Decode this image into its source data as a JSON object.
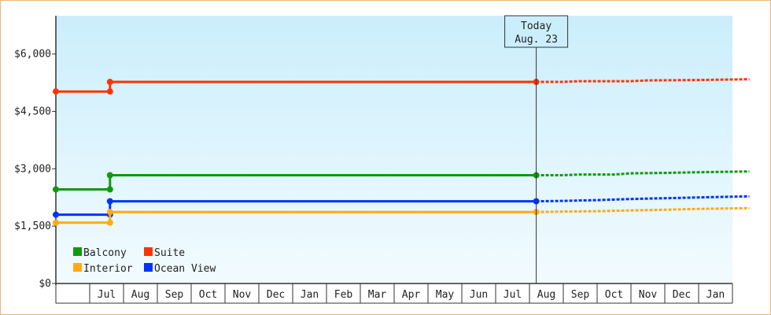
{
  "chart_data": {
    "type": "line",
    "title": "",
    "xlabel": "",
    "ylabel": "",
    "ylim": [
      0,
      7000
    ],
    "yticks": [
      {
        "value": 0,
        "label": "$0"
      },
      {
        "value": 1500,
        "label": "$1,500"
      },
      {
        "value": 3000,
        "label": "$3,000"
      },
      {
        "value": 4500,
        "label": "$4,500"
      },
      {
        "value": 6000,
        "label": "$6,000"
      }
    ],
    "months": [
      "",
      "Jul",
      "Aug",
      "Sep",
      "Oct",
      "Nov",
      "Dec",
      "Jan",
      "Feb",
      "Mar",
      "Apr",
      "May",
      "Jun",
      "Jul",
      "Aug",
      "Sep",
      "Oct",
      "Nov",
      "Dec",
      "Jan",
      ""
    ],
    "grid": false,
    "legend_position": "bottom-left",
    "today_marker": {
      "line1": "Today",
      "line2": "Aug. 23",
      "x": 14.2
    },
    "series": [
      {
        "name": "Suite",
        "color": "#ff3300",
        "history": [
          [
            0,
            5020
          ],
          [
            1.6,
            5020
          ],
          [
            1.6,
            5270
          ],
          [
            14.2,
            5270
          ]
        ],
        "forecast": [
          [
            14.2,
            5270
          ],
          [
            15.0,
            5270
          ],
          [
            15.5,
            5290
          ],
          [
            17.0,
            5290
          ],
          [
            17.5,
            5310
          ],
          [
            19.0,
            5320
          ],
          [
            20.5,
            5340
          ]
        ]
      },
      {
        "name": "Balcony",
        "color": "#119911",
        "history": [
          [
            0,
            2460
          ],
          [
            1.6,
            2460
          ],
          [
            1.6,
            2830
          ],
          [
            14.2,
            2830
          ]
        ],
        "forecast": [
          [
            14.2,
            2830
          ],
          [
            15.0,
            2830
          ],
          [
            15.5,
            2850
          ],
          [
            16.5,
            2850
          ],
          [
            17.0,
            2880
          ],
          [
            18.0,
            2890
          ],
          [
            19.0,
            2910
          ],
          [
            20.5,
            2930
          ]
        ]
      },
      {
        "name": "Ocean View",
        "color": "#0033ff",
        "history": [
          [
            0,
            1800
          ],
          [
            1.6,
            1800
          ],
          [
            1.6,
            2150
          ],
          [
            14.2,
            2150
          ]
        ],
        "forecast": [
          [
            14.2,
            2150
          ],
          [
            15.0,
            2160
          ],
          [
            16.0,
            2180
          ],
          [
            17.0,
            2210
          ],
          [
            18.0,
            2230
          ],
          [
            19.0,
            2250
          ],
          [
            20.5,
            2280
          ]
        ]
      },
      {
        "name": "Interior",
        "color": "#ffaa11",
        "history": [
          [
            0,
            1590
          ],
          [
            1.6,
            1590
          ],
          [
            1.6,
            1870
          ],
          [
            14.2,
            1870
          ]
        ],
        "forecast": [
          [
            14.2,
            1870
          ],
          [
            15.0,
            1880
          ],
          [
            16.0,
            1890
          ],
          [
            17.0,
            1910
          ],
          [
            18.0,
            1930
          ],
          [
            19.0,
            1950
          ],
          [
            20.5,
            1970
          ]
        ]
      }
    ],
    "legend_order": [
      "Balcony",
      "Suite",
      "Interior",
      "Ocean View"
    ]
  }
}
